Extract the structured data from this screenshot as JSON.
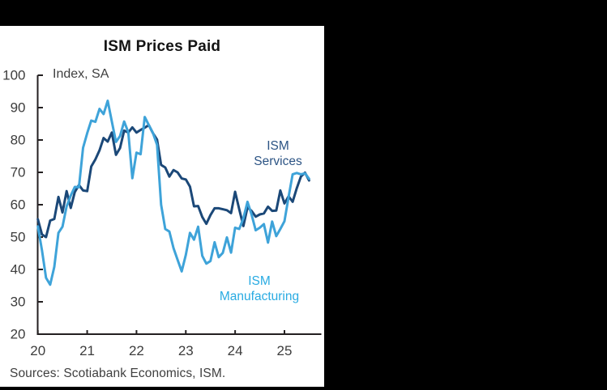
{
  "window": {
    "background_color": "#000000",
    "panel_background_color": "#ffffff"
  },
  "chart_data": {
    "type": "line",
    "title": "ISM Prices Paid",
    "axis_note": "Index, SA",
    "source": "Sources: Scotiabank Economics, ISM.",
    "frequency": "monthly",
    "x_start": "2020-01",
    "x_end": "2025-07",
    "x_tick_labels": [
      "20",
      "21",
      "22",
      "23",
      "24",
      "25"
    ],
    "y_ticks": [
      100,
      90,
      80,
      70,
      60,
      50,
      40,
      30,
      20
    ],
    "ylim": [
      20,
      100
    ],
    "grid": false,
    "legend": "inline series labels on plot",
    "colors": {
      "axis": "#231f20",
      "tick_text": "#3d3d3d",
      "title_text": "#141414",
      "note_text": "#3f3f3f"
    },
    "series": [
      {
        "name": "ISM Services",
        "label_lines": [
          "ISM",
          "Services"
        ],
        "color": "#1b4878",
        "label_color": "#2c5484",
        "values": [
          55.5,
          50.8,
          50.0,
          55.1,
          55.6,
          62.4,
          57.6,
          64.2,
          59.0,
          63.9,
          66.1,
          64.4,
          64.2,
          71.8,
          74.0,
          76.8,
          80.6,
          79.5,
          82.3,
          75.4,
          77.5,
          82.9,
          82.3,
          83.9,
          82.3,
          83.1,
          83.8,
          84.6,
          82.1,
          80.1,
          72.3,
          71.5,
          68.7,
          70.7,
          70.0,
          68.1,
          67.8,
          65.6,
          59.5,
          59.6,
          56.2,
          54.1,
          56.8,
          58.9,
          58.9,
          58.6,
          58.3,
          57.4,
          64.0,
          58.6,
          53.4,
          59.2,
          58.1,
          56.3,
          57.0,
          57.3,
          59.4,
          58.1,
          58.2,
          64.4,
          60.4,
          62.6,
          60.9,
          65.1,
          68.7,
          69.9,
          67.5
        ]
      },
      {
        "name": "ISM Manufacturing",
        "label_lines": [
          "ISM",
          "Manufacturing"
        ],
        "color": "#3ea3d9",
        "label_color": "#29abe2",
        "values": [
          53.3,
          45.9,
          37.4,
          35.3,
          40.8,
          51.3,
          53.2,
          59.5,
          62.8,
          65.5,
          65.4,
          77.6,
          82.1,
          86.0,
          85.6,
          89.6,
          88.0,
          92.1,
          85.7,
          79.4,
          81.2,
          85.7,
          82.4,
          68.2,
          76.1,
          75.6,
          87.1,
          84.6,
          82.2,
          78.5,
          60.0,
          52.5,
          51.7,
          46.6,
          43.0,
          39.4,
          44.5,
          51.3,
          49.2,
          53.2,
          44.2,
          41.8,
          42.6,
          48.4,
          43.8,
          45.1,
          49.9,
          45.2,
          52.9,
          52.5,
          55.8,
          60.9,
          57.0,
          52.1,
          52.9,
          54.0,
          48.3,
          54.8,
          50.3,
          52.5,
          54.9,
          62.4,
          69.4,
          69.8,
          69.4,
          69.7,
          68.0
        ]
      }
    ]
  }
}
